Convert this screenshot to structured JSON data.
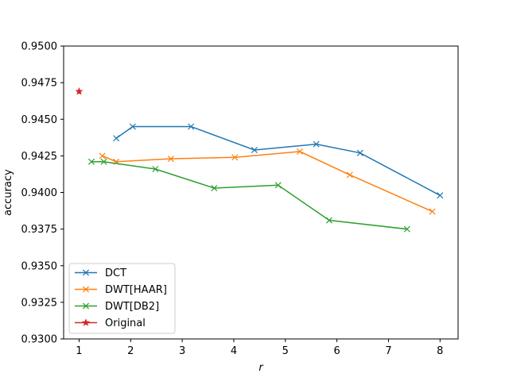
{
  "chart_data": {
    "type": "line",
    "title": "",
    "xlabel": "r",
    "ylabel": "accuracy",
    "xlim": [
      0.7,
      8.35
    ],
    "ylim": [
      0.93,
      0.95
    ],
    "xticks": [
      1,
      2,
      3,
      4,
      5,
      6,
      7,
      8
    ],
    "xtick_labels": [
      "1",
      "2",
      "3",
      "4",
      "5",
      "6",
      "7",
      "8"
    ],
    "yticks": [
      0.93,
      0.9325,
      0.935,
      0.9375,
      0.94,
      0.9425,
      0.945,
      0.9475,
      0.95
    ],
    "ytick_labels": [
      "0.9300",
      "0.9325",
      "0.9350",
      "0.9375",
      "0.9400",
      "0.9425",
      "0.9450",
      "0.9475",
      "0.9500"
    ],
    "grid": false,
    "legend_position": "lower-left",
    "series": [
      {
        "name": "DCT",
        "color": "#1f77b4",
        "marker": "x",
        "x": [
          1.72,
          2.04,
          3.17,
          4.4,
          5.6,
          6.45,
          8.0
        ],
        "y": [
          0.9437,
          0.9445,
          0.9445,
          0.9429,
          0.9433,
          0.9427,
          0.9398
        ]
      },
      {
        "name": "DWT[HAAR]",
        "color": "#ff7f0e",
        "marker": "x",
        "x": [
          1.45,
          1.72,
          2.78,
          4.02,
          5.28,
          6.25,
          7.85
        ],
        "y": [
          0.9425,
          0.9421,
          0.9423,
          0.9424,
          0.9428,
          0.9412,
          0.9387
        ]
      },
      {
        "name": "DWT[DB2]",
        "color": "#2ca02c",
        "marker": "x",
        "x": [
          1.24,
          1.48,
          2.48,
          3.62,
          4.86,
          5.85,
          7.36
        ],
        "y": [
          0.9421,
          0.9421,
          0.9416,
          0.9403,
          0.9405,
          0.9381,
          0.9375
        ]
      },
      {
        "name": "Original",
        "color": "#d62728",
        "marker": "star",
        "x": [
          1.0
        ],
        "y": [
          0.9469
        ]
      }
    ]
  }
}
